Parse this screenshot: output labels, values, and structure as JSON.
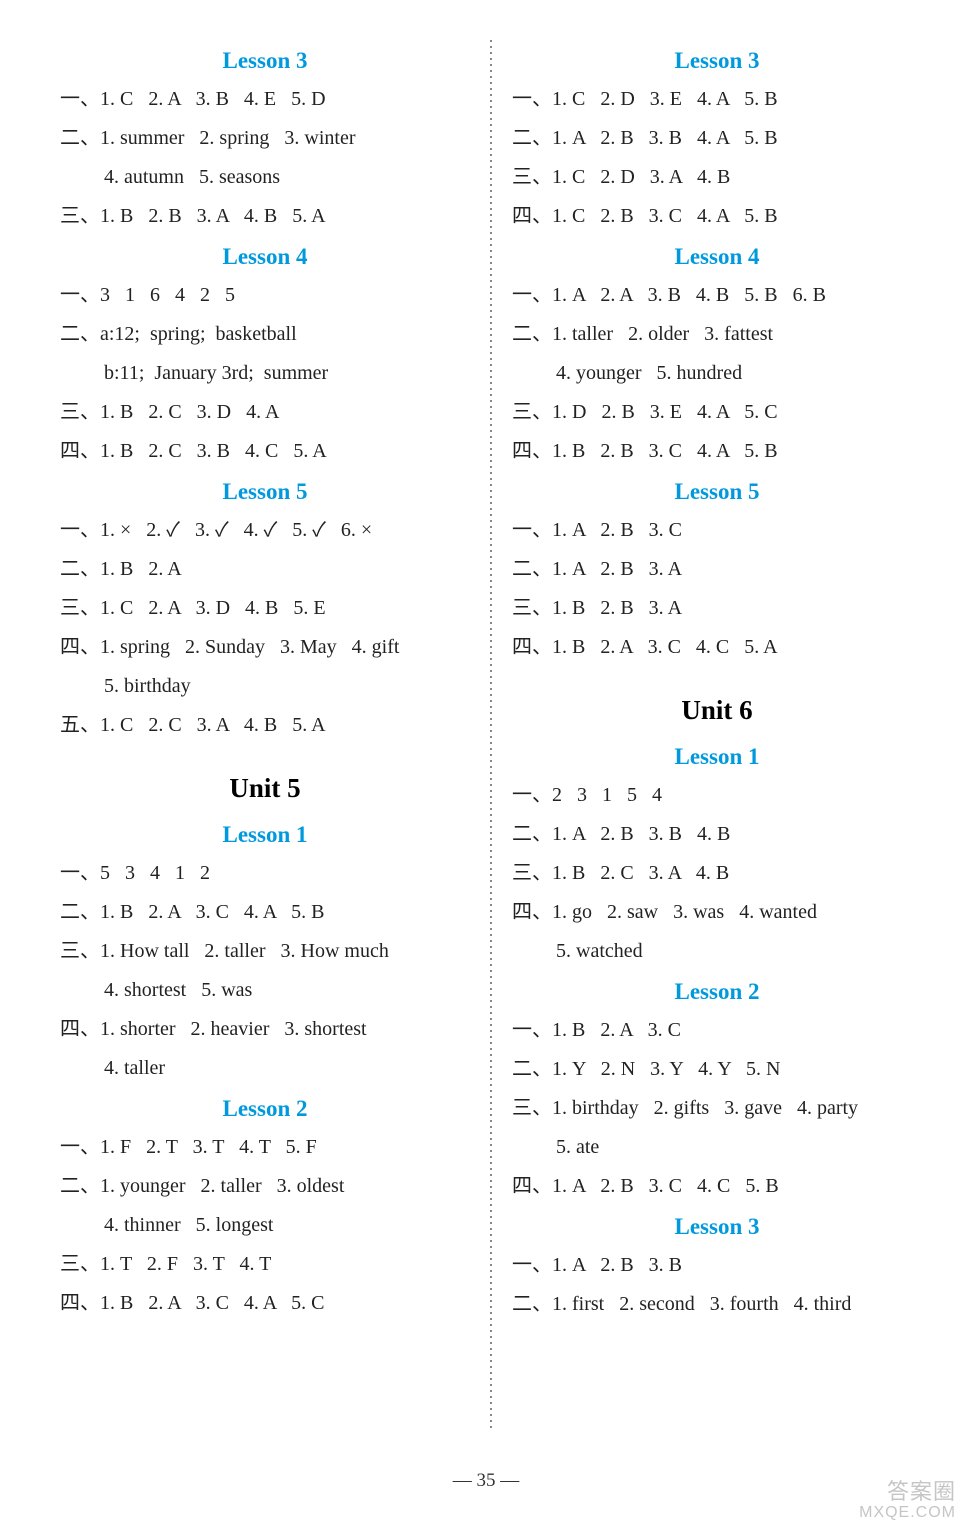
{
  "left": {
    "blocks": [
      {
        "type": "lesson",
        "text": "Lesson 3"
      },
      {
        "type": "line",
        "text": "一、1. C   2. A   3. B   4. E   5. D"
      },
      {
        "type": "line",
        "text": "二、1. summer   2. spring   3. winter"
      },
      {
        "type": "indent",
        "text": "4. autumn   5. seasons"
      },
      {
        "type": "line",
        "text": "三、1. B   2. B   3. A   4. B   5. A"
      },
      {
        "type": "lesson",
        "text": "Lesson 4"
      },
      {
        "type": "line",
        "text": "一、3   1   6   4   2   5"
      },
      {
        "type": "line",
        "text": "二、a:12;  spring;  basketball"
      },
      {
        "type": "indent",
        "text": "b:11;  January 3rd;  summer"
      },
      {
        "type": "line",
        "text": "三、1. B   2. C   3. D   4. A"
      },
      {
        "type": "line",
        "text": "四、1. B   2. C   3. B   4. C   5. A"
      },
      {
        "type": "lesson",
        "text": "Lesson 5"
      },
      {
        "type": "line",
        "text": "一、1. ×   2. ✓   3. ✓   4. ✓   5. ✓   6. ×"
      },
      {
        "type": "line",
        "text": "二、1. B   2. A"
      },
      {
        "type": "line",
        "text": "三、1. C   2. A   3. D   4. B   5. E"
      },
      {
        "type": "line",
        "text": "四、1. spring   2. Sunday   3. May   4. gift"
      },
      {
        "type": "indent",
        "text": "5. birthday"
      },
      {
        "type": "line",
        "text": "五、1. C   2. C   3. A   4. B   5. A"
      },
      {
        "type": "unit",
        "text": "Unit 5"
      },
      {
        "type": "lesson",
        "text": "Lesson 1"
      },
      {
        "type": "line",
        "text": "一、5   3   4   1   2"
      },
      {
        "type": "line",
        "text": "二、1. B   2. A   3. C   4. A   5. B"
      },
      {
        "type": "line",
        "text": "三、1. How tall   2. taller   3. How much"
      },
      {
        "type": "indent",
        "text": "4. shortest   5. was"
      },
      {
        "type": "line",
        "text": "四、1. shorter   2. heavier   3. shortest"
      },
      {
        "type": "indent",
        "text": "4. taller"
      },
      {
        "type": "lesson",
        "text": "Lesson 2"
      },
      {
        "type": "line",
        "text": "一、1. F   2. T   3. T   4. T   5. F"
      },
      {
        "type": "line",
        "text": "二、1. younger   2. taller   3. oldest"
      },
      {
        "type": "indent",
        "text": "4. thinner   5. longest"
      },
      {
        "type": "line",
        "text": "三、1. T   2. F   3. T   4. T"
      },
      {
        "type": "line",
        "text": "四、1. B   2. A   3. C   4. A   5. C"
      }
    ]
  },
  "right": {
    "blocks": [
      {
        "type": "lesson",
        "text": "Lesson 3"
      },
      {
        "type": "line",
        "text": "一、1. C   2. D   3. E   4. A   5. B"
      },
      {
        "type": "line",
        "text": "二、1. A   2. B   3. B   4. A   5. B"
      },
      {
        "type": "line",
        "text": "三、1. C   2. D   3. A   4. B"
      },
      {
        "type": "line",
        "text": "四、1. C   2. B   3. C   4. A   5. B"
      },
      {
        "type": "lesson",
        "text": "Lesson 4"
      },
      {
        "type": "line",
        "text": "一、1. A   2. A   3. B   4. B   5. B   6. B"
      },
      {
        "type": "line",
        "text": "二、1. taller   2. older   3. fattest"
      },
      {
        "type": "indent",
        "text": "4. younger   5. hundred"
      },
      {
        "type": "line",
        "text": "三、1. D   2. B   3. E   4. A   5. C"
      },
      {
        "type": "line",
        "text": "四、1. B   2. B   3. C   4. A   5. B"
      },
      {
        "type": "lesson",
        "text": "Lesson 5"
      },
      {
        "type": "line",
        "text": "一、1. A   2. B   3. C"
      },
      {
        "type": "line",
        "text": "二、1. A   2. B   3. A"
      },
      {
        "type": "line",
        "text": "三、1. B   2. B   3. A"
      },
      {
        "type": "line",
        "text": "四、1. B   2. A   3. C   4. C   5. A"
      },
      {
        "type": "unit",
        "text": "Unit 6"
      },
      {
        "type": "lesson",
        "text": "Lesson 1"
      },
      {
        "type": "line",
        "text": "一、2   3   1   5   4"
      },
      {
        "type": "line",
        "text": "二、1. A   2. B   3. B   4. B"
      },
      {
        "type": "line",
        "text": "三、1. B   2. C   3. A   4. B"
      },
      {
        "type": "line",
        "text": "四、1. go   2. saw   3. was   4. wanted"
      },
      {
        "type": "indent",
        "text": "5. watched"
      },
      {
        "type": "lesson",
        "text": "Lesson 2"
      },
      {
        "type": "line",
        "text": "一、1. B   2. A   3. C"
      },
      {
        "type": "line",
        "text": "二、1. Y   2. N   3. Y   4. Y   5. N"
      },
      {
        "type": "line",
        "text": "三、1. birthday   2. gifts   3. gave   4. party"
      },
      {
        "type": "indent",
        "text": "5. ate"
      },
      {
        "type": "line",
        "text": "四、1. A   2. B   3. C   4. C   5. B"
      },
      {
        "type": "lesson",
        "text": "Lesson 3"
      },
      {
        "type": "line",
        "text": "一、1. A   2. B   3. B"
      },
      {
        "type": "line",
        "text": "二、1. first   2. second   3. fourth   4. third"
      }
    ]
  },
  "page_number": "— 35 —",
  "watermark_top": "答案圈",
  "watermark_bottom": "MXQE.COM",
  "colors": {
    "lesson_title": "#0099dd",
    "unit_title": "#000000",
    "body_text": "#222222",
    "background": "#ffffff",
    "divider": "#888888",
    "watermark": "rgba(150,150,150,0.55)"
  },
  "typography": {
    "lesson_title_fontsize": 23,
    "unit_title_fontsize": 27,
    "body_fontsize": 20,
    "line_height": 1.95
  }
}
